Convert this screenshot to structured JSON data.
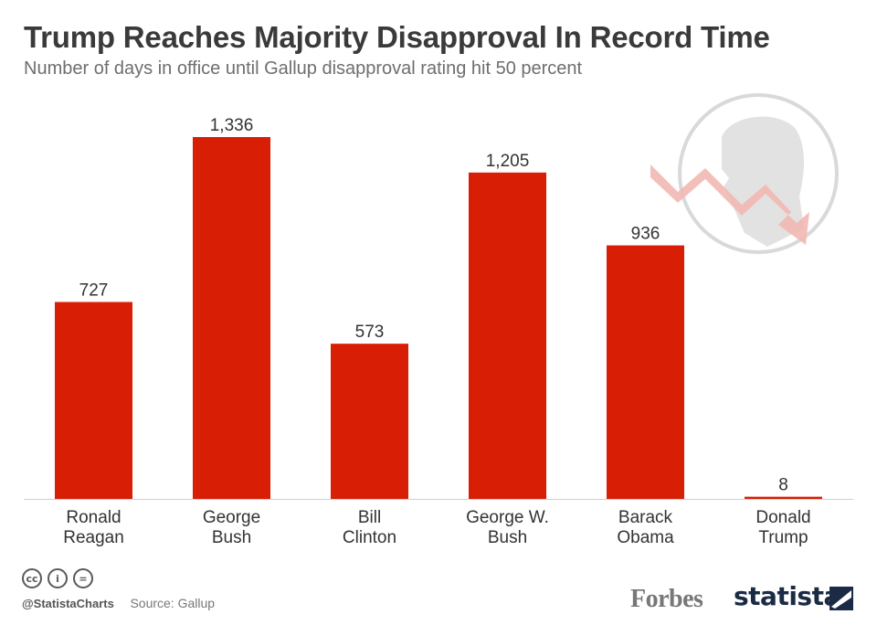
{
  "title": "Trump Reaches Majority Disapproval In Record Time",
  "subtitle": "Number of days in office until Gallup disapproval rating hit 50 percent",
  "chart_data": {
    "type": "bar",
    "categories": [
      [
        "Ronald",
        "Reagan"
      ],
      [
        "George",
        "Bush"
      ],
      [
        "Bill",
        "Clinton"
      ],
      [
        "George W.",
        "Bush"
      ],
      [
        "Barack",
        "Obama"
      ],
      [
        "Donald",
        "Trump"
      ]
    ],
    "values": [
      727,
      1336,
      573,
      1205,
      936,
      8
    ],
    "value_labels": [
      "727",
      "1,336",
      "573",
      "1,205",
      "936",
      "8"
    ],
    "ylim": [
      0,
      1336
    ],
    "bar_color": "#d81e05",
    "grid": false,
    "legend": "none"
  },
  "footer": {
    "cc_icons": [
      "cc-icon",
      "attribution-icon",
      "no-derivatives-icon"
    ],
    "cc_glyphs": [
      "cc",
      "i",
      "="
    ],
    "handle": "@StatistaCharts",
    "source": "Source: Gallup",
    "forbes_logo": "Forbes",
    "statista_logo": "statista"
  },
  "colors": {
    "title": "#3a3a3a",
    "subtitle": "#6e6e6e",
    "bar": "#d81e05",
    "statista": "#1b2b45"
  }
}
